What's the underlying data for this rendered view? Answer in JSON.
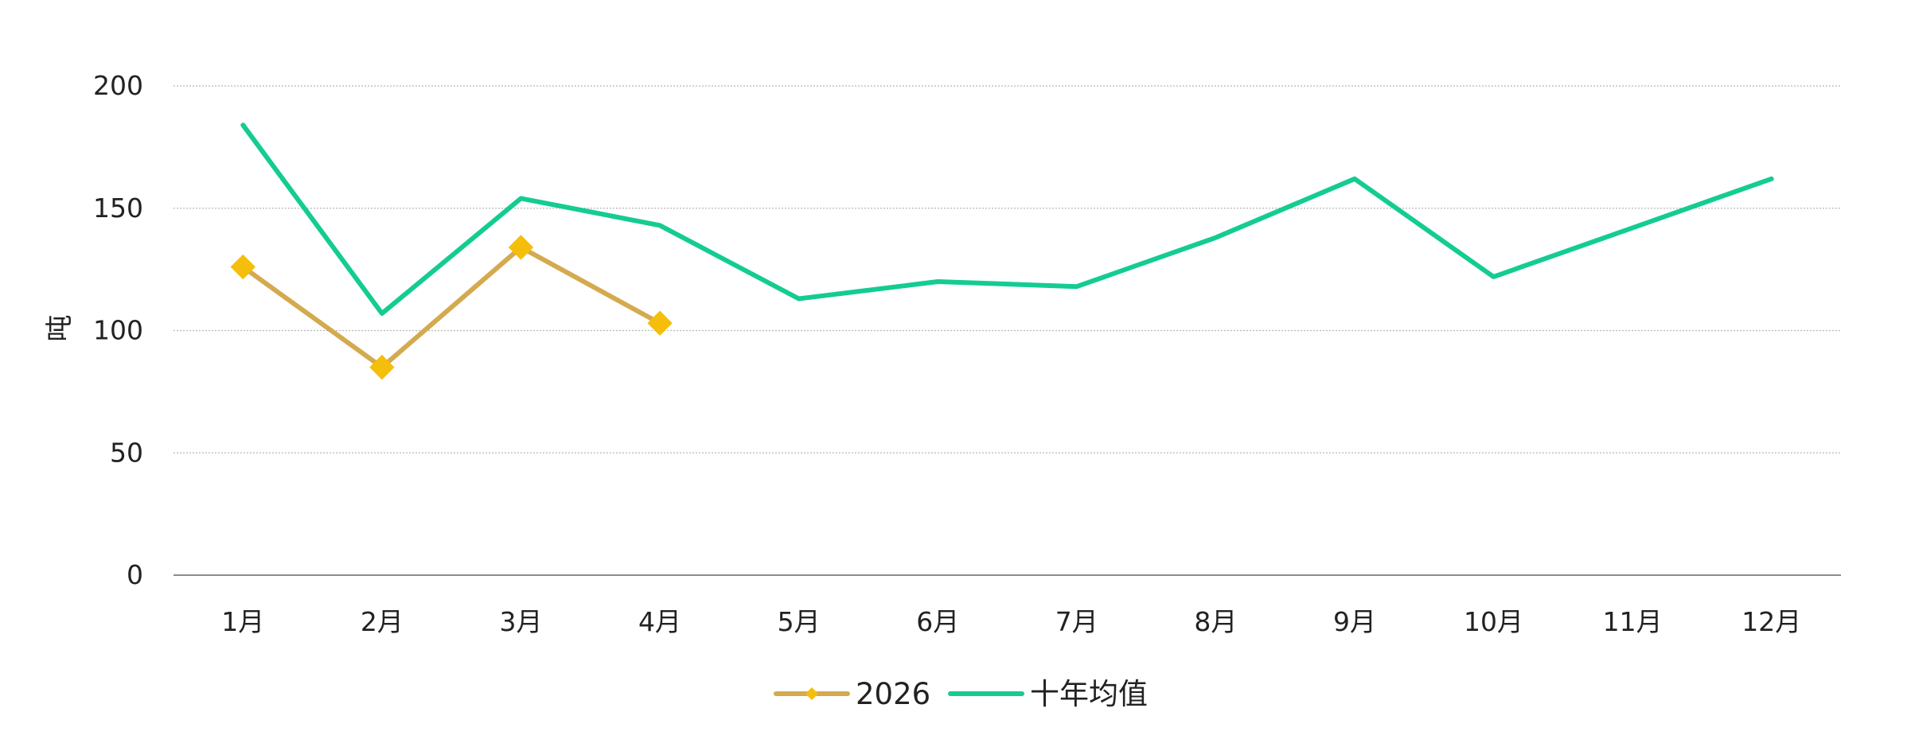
{
  "chart_data": {
    "type": "line",
    "title": "",
    "xlabel": "",
    "ylabel": "吨",
    "ylim": [
      0,
      200
    ],
    "yticks": [
      0,
      50,
      100,
      150,
      200
    ],
    "categories": [
      "1月",
      "2月",
      "3月",
      "4月",
      "5月",
      "6月",
      "7月",
      "8月",
      "9月",
      "10月",
      "11月",
      "12月"
    ],
    "series": [
      {
        "name": "2026",
        "values": [
          126,
          85,
          134,
          103,
          null,
          null,
          null,
          null,
          null,
          null,
          null,
          null
        ],
        "color": "#D4AA4F",
        "marker": "diamond",
        "marker_color": "#F5BE0B"
      },
      {
        "name": "十年均值",
        "values": [
          184,
          107,
          154,
          143,
          113,
          120,
          118,
          138,
          162,
          122,
          142,
          162
        ],
        "color": "#14CC92",
        "marker": "none"
      }
    ],
    "grid": true,
    "legend": "bottom-center"
  }
}
